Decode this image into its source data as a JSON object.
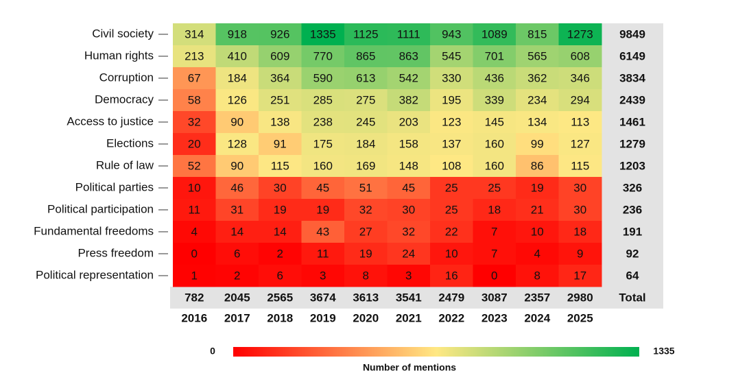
{
  "chart_data": {
    "type": "heatmap",
    "x": [
      "2016",
      "2017",
      "2018",
      "2019",
      "2020",
      "2021",
      "2022",
      "2023",
      "2024",
      "2025"
    ],
    "categories": [
      "Civil society",
      "Human rights",
      "Corruption",
      "Democracy",
      "Access to justice",
      "Elections",
      "Rule of law",
      "Political parties",
      "Political participation",
      "Fundamental freedoms",
      "Press freedom",
      "Political representation"
    ],
    "values": [
      [
        314,
        918,
        926,
        1335,
        1125,
        1111,
        943,
        1089,
        815,
        1273
      ],
      [
        213,
        410,
        609,
        770,
        865,
        863,
        545,
        701,
        565,
        608
      ],
      [
        67,
        184,
        364,
        590,
        613,
        542,
        330,
        436,
        362,
        346
      ],
      [
        58,
        126,
        251,
        285,
        275,
        382,
        195,
        339,
        234,
        294
      ],
      [
        32,
        90,
        138,
        238,
        245,
        203,
        123,
        145,
        134,
        113
      ],
      [
        20,
        128,
        91,
        175,
        184,
        158,
        137,
        160,
        99,
        127
      ],
      [
        52,
        90,
        115,
        160,
        169,
        148,
        108,
        160,
        86,
        115
      ],
      [
        10,
        46,
        30,
        45,
        51,
        45,
        25,
        25,
        19,
        30
      ],
      [
        11,
        31,
        19,
        19,
        32,
        30,
        25,
        18,
        21,
        30
      ],
      [
        4,
        14,
        14,
        43,
        27,
        32,
        22,
        7,
        10,
        18
      ],
      [
        0,
        6,
        2,
        11,
        19,
        24,
        10,
        7,
        4,
        9
      ],
      [
        1,
        2,
        6,
        3,
        8,
        3,
        16,
        0,
        8,
        17
      ]
    ],
    "row_totals": [
      9849,
      6149,
      3834,
      2439,
      1461,
      1279,
      1203,
      326,
      236,
      191,
      92,
      64
    ],
    "column_totals": [
      782,
      2045,
      2565,
      3674,
      3613,
      3541,
      2479,
      3087,
      2357,
      2980
    ],
    "total_label": "Total",
    "clim": [
      0,
      1335
    ],
    "colorbar_label": "Number of mentions",
    "colors": [
      "#ff0000",
      "#ffe884",
      "#00b050"
    ],
    "year_color": "#4a7ebb",
    "total_background": "#e3e3e3"
  }
}
